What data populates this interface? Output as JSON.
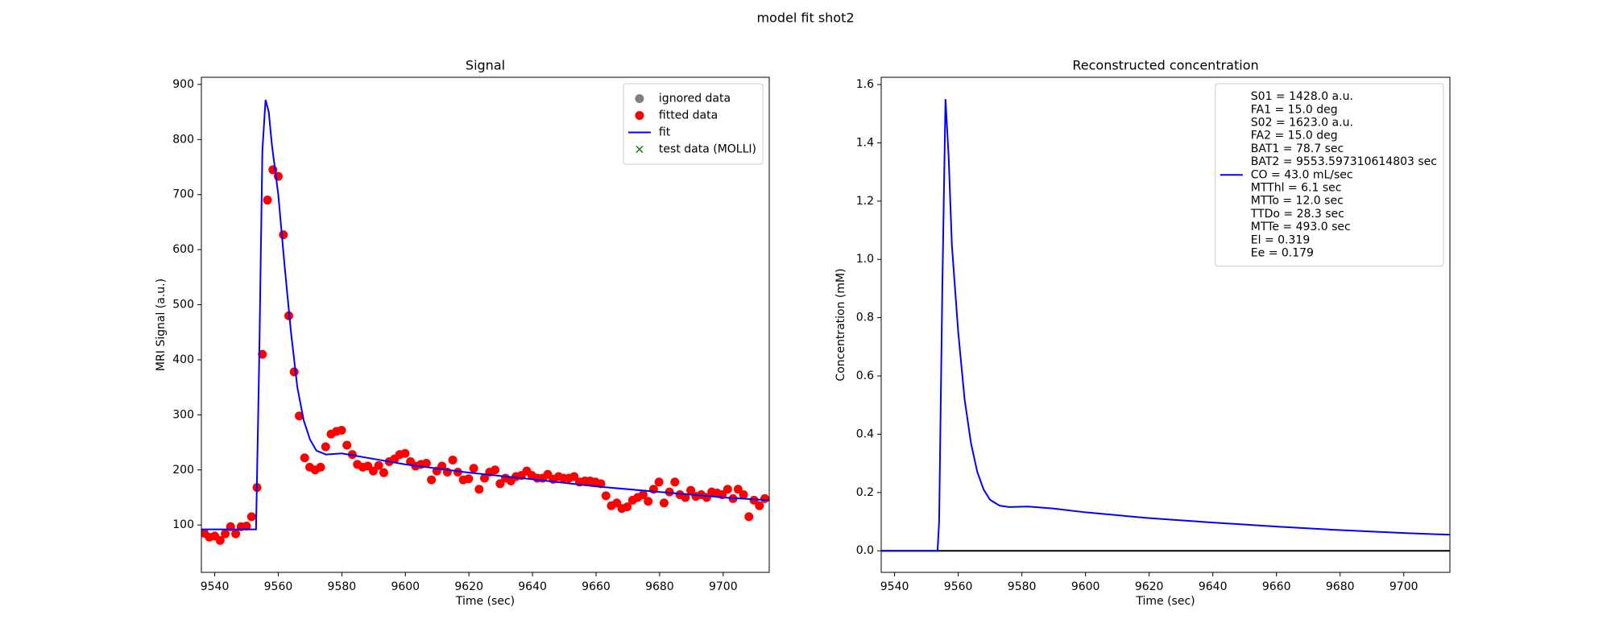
{
  "suptitle": "model fit shot2",
  "chart_data": [
    {
      "type": "scatter",
      "title": "Signal",
      "xlabel": "Time (sec)",
      "ylabel": "MRI Signal (a.u.)",
      "xlim": [
        9535.8,
        9714.5
      ],
      "ylim": [
        14,
        913
      ],
      "xticks": [
        9540,
        9560,
        9580,
        9600,
        9620,
        9640,
        9660,
        9680,
        9700
      ],
      "yticks": [
        100,
        200,
        300,
        400,
        500,
        600,
        700,
        800,
        900
      ],
      "legend": "upper right",
      "series": [
        {
          "name": "ignored data",
          "type": "scatter",
          "marker": "o",
          "color": "#808080",
          "x": [],
          "values": []
        },
        {
          "name": "fitted data",
          "type": "scatter",
          "marker": "o",
          "color": "#ff0000",
          "x": [
            9535.0,
            9536.7,
            9538.3,
            9540.0,
            9541.7,
            9543.3,
            9545.0,
            9546.6,
            9548.3,
            9550.0,
            9551.6,
            9553.3,
            9555.0,
            9556.6,
            9558.3,
            9560.0,
            9561.6,
            9563.3,
            9565.0,
            9566.6,
            9568.3,
            9569.9,
            9571.6,
            9573.3,
            9574.9,
            9576.6,
            9578.3,
            9579.9,
            9581.6,
            9583.3,
            9584.9,
            9586.6,
            9588.2,
            9589.9,
            9591.6,
            9593.2,
            9594.9,
            9596.6,
            9598.2,
            9599.9,
            9601.6,
            9603.2,
            9604.9,
            9606.6,
            9608.2,
            9609.9,
            9611.5,
            9613.2,
            9614.9,
            9616.5,
            9618.2,
            9619.9,
            9621.5,
            9623.2,
            9624.9,
            9626.5,
            9628.2,
            9629.8,
            9631.5,
            9633.2,
            9634.8,
            9636.5,
            9638.2,
            9639.8,
            9641.5,
            9643.2,
            9644.8,
            9646.5,
            9648.2,
            9649.8,
            9651.5,
            9653.1,
            9654.8,
            9656.5,
            9658.1,
            9659.8,
            9661.5,
            9663.1,
            9664.8,
            9666.5,
            9668.1,
            9669.8,
            9671.5,
            9673.1,
            9674.8,
            9676.4,
            9678.1,
            9679.8,
            9681.4,
            9683.1,
            9684.8,
            9686.4,
            9688.1,
            9689.8,
            9691.4,
            9693.1,
            9694.8,
            9696.4,
            9698.1,
            9699.7,
            9701.4,
            9703.1,
            9704.7,
            9706.4,
            9708.1,
            9709.7,
            9711.4,
            9713.1
          ],
          "values": [
            85,
            85,
            78,
            80,
            72,
            84,
            97,
            84,
            97,
            98,
            115,
            168,
            410,
            690,
            745,
            733,
            627,
            480,
            378,
            298,
            222,
            205,
            200,
            205,
            242,
            265,
            270,
            272,
            245,
            228,
            210,
            205,
            207,
            198,
            208,
            195,
            215,
            220,
            228,
            230,
            215,
            207,
            210,
            212,
            182,
            198,
            207,
            196,
            218,
            196,
            182,
            184,
            203,
            165,
            185,
            196,
            200,
            175,
            185,
            180,
            188,
            190,
            198,
            190,
            185,
            185,
            192,
            183,
            188,
            185,
            185,
            188,
            178,
            180,
            180,
            178,
            175,
            153,
            135,
            140,
            130,
            133,
            145,
            150,
            155,
            143,
            165,
            178,
            140,
            160,
            178,
            155,
            150,
            163,
            152,
            155,
            150,
            160,
            158,
            155,
            165,
            148,
            165,
            155,
            115,
            145,
            135,
            148
          ]
        },
        {
          "name": "fit",
          "type": "line",
          "color": "#0000ff",
          "x": [
            9535,
            9553,
            9554,
            9555,
            9556,
            9557,
            9558,
            9560,
            9562,
            9564,
            9566,
            9568,
            9570,
            9572,
            9575,
            9580,
            9590,
            9600,
            9620,
            9640,
            9660,
            9680,
            9700,
            9714.5
          ],
          "values": [
            92,
            92,
            400,
            780,
            872,
            850,
            790,
            700,
            570,
            450,
            350,
            290,
            255,
            235,
            228,
            230,
            220,
            210,
            195,
            183,
            170,
            160,
            150,
            145
          ]
        },
        {
          "name": "test data (MOLLI)",
          "type": "scatter",
          "marker": "x",
          "color": "#008000",
          "x": [],
          "values": []
        }
      ]
    },
    {
      "type": "line",
      "title": "Reconstructed concentration",
      "xlabel": "Time (sec)",
      "ylabel": "Concentration (mM)",
      "xlim": [
        9535.8,
        9714.5
      ],
      "ylim": [
        -0.074,
        1.625
      ],
      "xticks": [
        9540,
        9560,
        9580,
        9600,
        9620,
        9640,
        9660,
        9680,
        9700
      ],
      "yticks": [
        {
          "value": 0,
          "label": "0.0"
        },
        0.2,
        0.4,
        0.6,
        0.8,
        {
          "value": 1,
          "label": "1.0"
        },
        1.2,
        1.4,
        1.6
      ],
      "hline": 0,
      "hline_color": "#000000",
      "legend": "upper right",
      "series": [
        {
          "name": [
            "S01 = 1428.0 a.u.",
            "FA1 = 15.0 deg",
            "S02 = 1623.0 a.u.",
            "FA2 = 15.0 deg",
            "BAT1 = 78.7 sec",
            "BAT2 = 9553.597310614803 sec",
            "CO = 43.0 mL/sec",
            "MTThl = 6.1 sec",
            "MTTo = 12.0 sec",
            "TTDo = 28.3 sec",
            "MTTe = 493.0 sec",
            "El = 0.319",
            "Ee = 0.179"
          ],
          "type": "line",
          "color": "#0000ff",
          "x": [
            9535,
            9553.5,
            9554,
            9555,
            9556,
            9557,
            9558,
            9560,
            9562,
            9564,
            9566,
            9568,
            9570,
            9573,
            9576,
            9582,
            9590,
            9600,
            9620,
            9640,
            9660,
            9680,
            9700,
            9714.5
          ],
          "values": [
            0,
            0,
            0.1,
            0.9,
            1.55,
            1.35,
            1.05,
            0.75,
            0.52,
            0.37,
            0.27,
            0.21,
            0.175,
            0.155,
            0.15,
            0.152,
            0.145,
            0.132,
            0.112,
            0.097,
            0.083,
            0.071,
            0.061,
            0.055
          ]
        }
      ]
    }
  ]
}
